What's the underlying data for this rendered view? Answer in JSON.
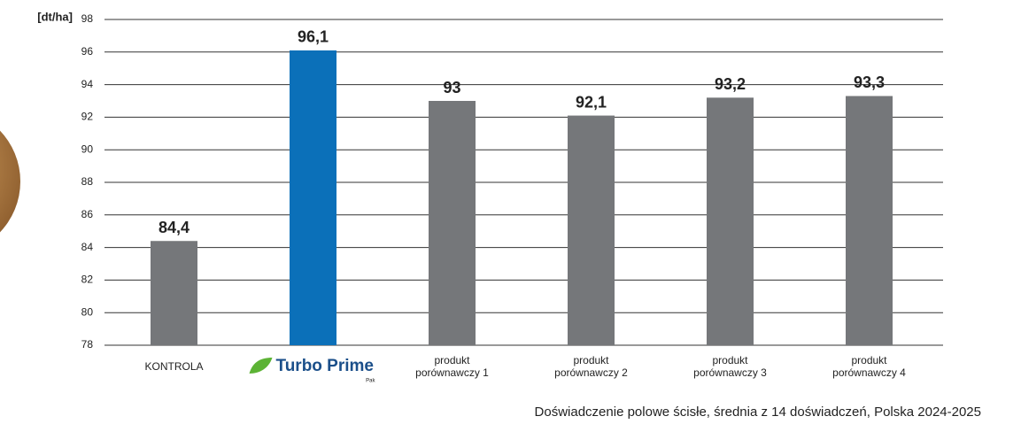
{
  "chart_data": {
    "type": "bar",
    "y_unit": "[dt/ha]",
    "categories": [
      "KONTROLA",
      "Turbo Prime",
      "produkt porównawczy 1",
      "produkt porównawczy 2",
      "produkt porównawczy 3",
      "produkt porównawczy 4"
    ],
    "logo_suffix": "Pak",
    "values": [
      84.4,
      96.1,
      93,
      92.1,
      93.2,
      93.3
    ],
    "value_labels": [
      "84,4",
      "96,1",
      "93",
      "92,1",
      "93,2",
      "93,3"
    ],
    "colors": [
      "#75777a",
      "#0b70b9",
      "#75777a",
      "#75777a",
      "#75777a",
      "#75777a"
    ],
    "ylim": [
      78,
      98
    ],
    "yticks": [
      78,
      80,
      82,
      84,
      86,
      88,
      90,
      92,
      94,
      96,
      98
    ],
    "grid": true,
    "note": "Doświadczenie polowe ścisłe, średnia z 14 doświadczeń, Polska 2024-2025"
  }
}
